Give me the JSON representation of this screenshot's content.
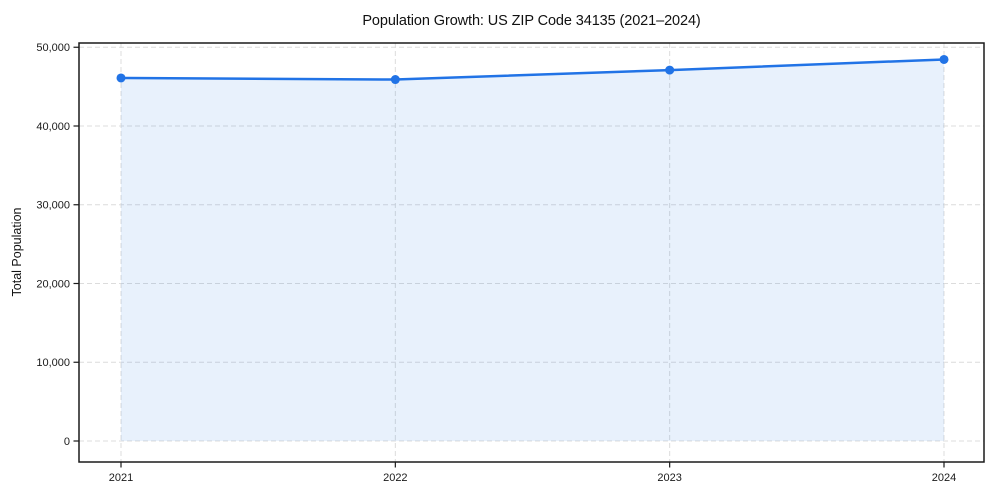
{
  "figure": {
    "title": "Population Growth: US ZIP Code 34135 (2021–2024)",
    "y_axis_label": "Total Population"
  },
  "chart_data": {
    "type": "area",
    "title": "Population Growth: US ZIP Code 34135 (2021–2024)",
    "xlabel": "",
    "ylabel": "Total Population",
    "categories": [
      "2021",
      "2022",
      "2023",
      "2024"
    ],
    "series": [
      {
        "name": "Total Population",
        "values": [
          46100,
          45900,
          47100,
          48450
        ]
      }
    ],
    "ylim": [
      0,
      50000
    ],
    "yticks": [
      0,
      10000,
      20000,
      30000,
      40000,
      50000
    ],
    "ytick_labels": [
      "0",
      "10,000",
      "20,000",
      "30,000",
      "40,000",
      "50,000"
    ],
    "xtick_labels": [
      "2021",
      "2022",
      "2023",
      "2024"
    ],
    "grid": "dashed-both-axes",
    "legend_position": "none",
    "marker": "circle",
    "colors": {
      "line": "#2173e6",
      "area_fill": "#e9effc",
      "grid": "#dcdcdc",
      "axis": "#1a1a1a",
      "text": "#1a1a1a",
      "background": "#ffffff"
    }
  }
}
